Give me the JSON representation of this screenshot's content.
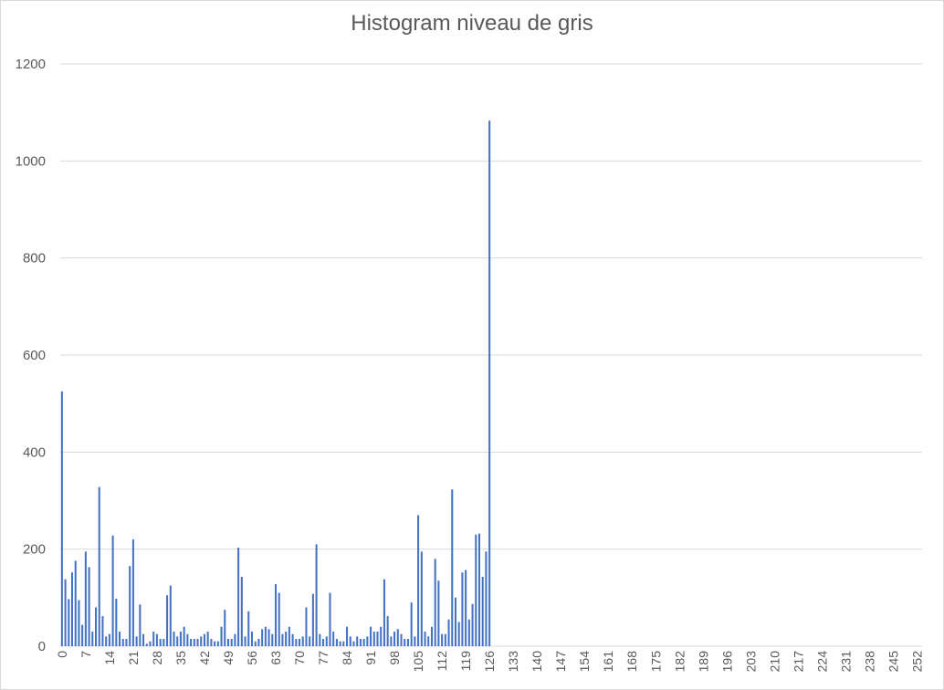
{
  "chart_data": {
    "type": "bar",
    "title": "Histogram niveau de gris",
    "xlabel": "",
    "ylabel": "",
    "ylim": [
      0,
      1200
    ],
    "yticks": [
      0,
      200,
      400,
      600,
      800,
      1000,
      1200
    ],
    "grid": true,
    "legend": "none",
    "bar_color": "#4472c4",
    "grid_color": "#d9d9d9",
    "x_start": 0,
    "x_count": 256,
    "x_tick_step": 7,
    "values": [
      525,
      138,
      97,
      152,
      176,
      95,
      44,
      195,
      163,
      30,
      80,
      328,
      62,
      20,
      25,
      228,
      98,
      30,
      15,
      15,
      165,
      220,
      20,
      86,
      25,
      5,
      10,
      30,
      25,
      15,
      15,
      105,
      125,
      30,
      20,
      30,
      40,
      25,
      15,
      15,
      15,
      20,
      25,
      30,
      15,
      10,
      10,
      40,
      75,
      15,
      15,
      25,
      203,
      143,
      20,
      72,
      30,
      10,
      15,
      35,
      40,
      35,
      25,
      128,
      110,
      25,
      30,
      40,
      25,
      15,
      15,
      20,
      80,
      20,
      108,
      210,
      25,
      15,
      20,
      110,
      30,
      15,
      10,
      10,
      40,
      20,
      10,
      20,
      15,
      15,
      20,
      40,
      30,
      30,
      40,
      138,
      62,
      20,
      30,
      35,
      25,
      15,
      15,
      90,
      20,
      270,
      195,
      30,
      20,
      40,
      180,
      135,
      25,
      25,
      55,
      323,
      100,
      50,
      152,
      157,
      55,
      87,
      230,
      232,
      143,
      195,
      1083,
      0,
      0,
      0,
      0,
      0,
      0,
      0,
      0,
      0,
      0,
      0,
      0,
      0,
      0,
      0,
      0,
      0,
      0,
      0,
      0,
      0,
      0,
      0,
      0,
      0,
      0,
      0,
      0,
      0,
      0,
      0,
      0,
      0,
      0,
      0,
      0,
      0,
      0,
      0,
      0,
      0,
      0,
      0,
      0,
      0,
      0,
      0,
      0,
      0,
      0,
      0,
      0,
      0,
      0,
      0,
      0,
      0,
      0,
      0,
      0,
      0,
      0,
      0,
      0,
      0,
      0,
      0,
      0,
      0,
      0,
      0,
      0,
      0,
      0,
      0,
      0,
      0,
      0,
      0,
      0,
      0,
      0,
      0,
      0,
      0,
      0,
      0,
      0,
      0,
      0,
      0,
      0,
      0,
      0,
      0,
      0,
      0,
      0,
      0,
      0,
      0,
      0,
      0,
      0,
      0,
      0,
      0,
      0,
      0,
      0,
      0,
      0,
      0,
      0,
      0,
      0,
      0,
      0,
      0,
      0,
      0,
      0,
      0,
      0,
      0,
      0,
      0
    ]
  }
}
